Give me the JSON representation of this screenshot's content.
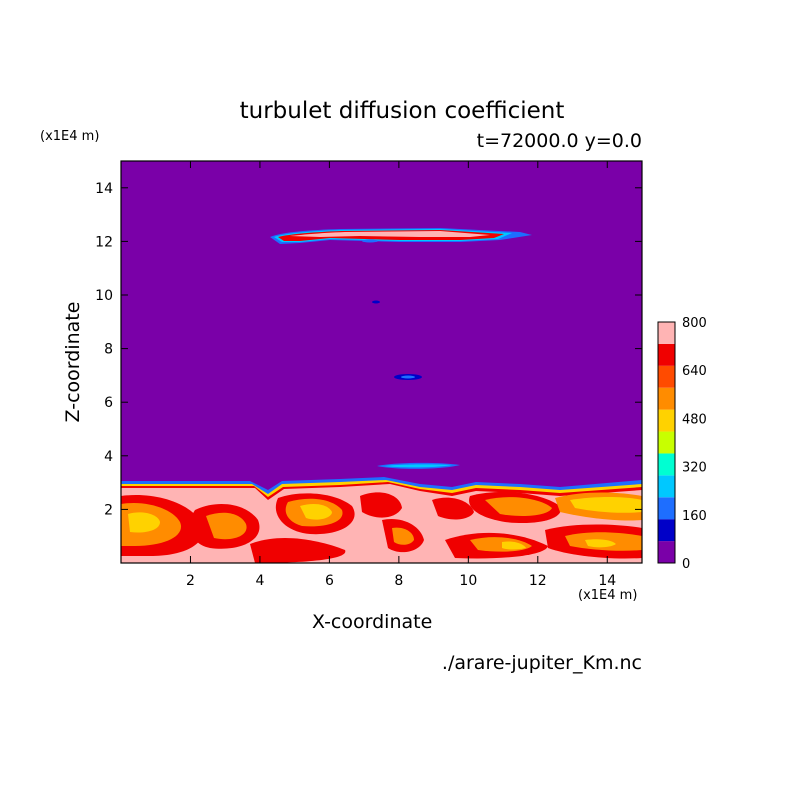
{
  "chart_data": {
    "type": "heatmap",
    "title": "turbulet diffusion coefficient",
    "subtitle": "t=72000.0 y=0.0",
    "xlabel": "X-coordinate",
    "ylabel": "Z-coordinate",
    "x_unit": "(x1E4 m)",
    "y_unit": "(x1E4 m)",
    "xlim": [
      0,
      15
    ],
    "ylim": [
      0,
      15
    ],
    "x_ticks": [
      2,
      4,
      6,
      8,
      10,
      12,
      14
    ],
    "y_ticks": [
      2,
      4,
      6,
      8,
      10,
      12,
      14
    ],
    "colorbar": {
      "levels": [
        0,
        80,
        160,
        240,
        320,
        400,
        480,
        560,
        640,
        720,
        800
      ],
      "tick_labels": [
        "0",
        "160",
        "320",
        "480",
        "640",
        "800"
      ],
      "colors": [
        "#7a00a8",
        "#0000c8",
        "#1e6eff",
        "#00c8ff",
        "#00ffd2",
        "#c8ff00",
        "#ffd200",
        "#ff8c00",
        "#ff4b00",
        "#f00000",
        "#ffb4b4"
      ]
    },
    "source": "./arare-jupiter_Km.nc"
  }
}
